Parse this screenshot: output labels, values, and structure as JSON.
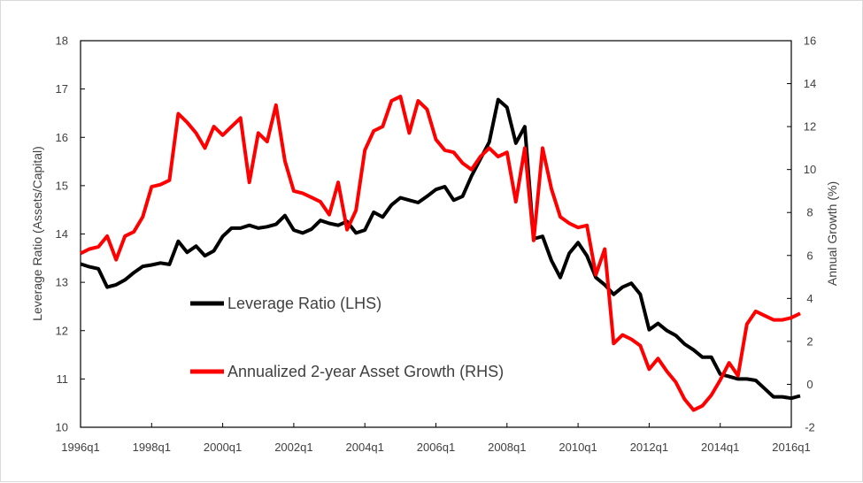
{
  "chart_data": {
    "type": "line",
    "title": "",
    "xlabel": "",
    "ylabel_left": "Leverage Ratio (Assets/Capital)",
    "ylabel_right": "Annual Growth (%)",
    "y_left_lim": [
      10,
      18
    ],
    "y_left_ticks": [
      "10",
      "11",
      "12",
      "13",
      "14",
      "15",
      "16",
      "17",
      "18"
    ],
    "y_right_lim": [
      -2,
      16
    ],
    "y_right_ticks": [
      "-2",
      "0",
      "2",
      "4",
      "6",
      "8",
      "10",
      "12",
      "14",
      "16"
    ],
    "x_tick_labels": [
      "1996q1",
      "1998q1",
      "2000q1",
      "2002q1",
      "2004q1",
      "2006q1",
      "2008q1",
      "2010q1",
      "2012q1",
      "2014q1",
      "2016q1"
    ],
    "x_range": [
      "1996q1",
      "2016q1"
    ],
    "grid": false,
    "legend_position": "center-left",
    "series": [
      {
        "name": "Leverage Ratio (LHS)",
        "axis": "left",
        "color": "#000000",
        "points": [
          [
            "1996q1",
            13.38
          ],
          [
            "1996q2",
            13.32
          ],
          [
            "1996q3",
            13.28
          ],
          [
            "1996q4",
            12.9
          ],
          [
            "1997q1",
            12.95
          ],
          [
            "1997q2",
            13.05
          ],
          [
            "1997q3",
            13.2
          ],
          [
            "1997q4",
            13.33
          ],
          [
            "1998q1",
            13.36
          ],
          [
            "1998q2",
            13.4
          ],
          [
            "1998q3",
            13.37
          ],
          [
            "1998q4",
            13.85
          ],
          [
            "1999q1",
            13.62
          ],
          [
            "1999q2",
            13.75
          ],
          [
            "1999q3",
            13.55
          ],
          [
            "1999q4",
            13.65
          ],
          [
            "2000q1",
            13.95
          ],
          [
            "2000q2",
            14.12
          ],
          [
            "2000q3",
            14.12
          ],
          [
            "2000q4",
            14.18
          ],
          [
            "2001q1",
            14.12
          ],
          [
            "2001q2",
            14.15
          ],
          [
            "2001q3",
            14.2
          ],
          [
            "2001q4",
            14.38
          ],
          [
            "2002q1",
            14.08
          ],
          [
            "2002q2",
            14.02
          ],
          [
            "2002q3",
            14.1
          ],
          [
            "2002q4",
            14.28
          ],
          [
            "2003q1",
            14.22
          ],
          [
            "2003q2",
            14.18
          ],
          [
            "2003q3",
            14.26
          ],
          [
            "2003q4",
            14.02
          ],
          [
            "2004q1",
            14.08
          ],
          [
            "2004q2",
            14.45
          ],
          [
            "2004q3",
            14.35
          ],
          [
            "2004q4",
            14.6
          ],
          [
            "2005q1",
            14.75
          ],
          [
            "2005q2",
            14.7
          ],
          [
            "2005q3",
            14.65
          ],
          [
            "2005q4",
            14.78
          ],
          [
            "2006q1",
            14.92
          ],
          [
            "2006q2",
            14.98
          ],
          [
            "2006q3",
            14.7
          ],
          [
            "2006q4",
            14.78
          ],
          [
            "2007q1",
            15.2
          ],
          [
            "2007q2",
            15.55
          ],
          [
            "2007q3",
            15.9
          ],
          [
            "2007q4",
            16.78
          ],
          [
            "2008q1",
            16.62
          ],
          [
            "2008q2",
            15.88
          ],
          [
            "2008q3",
            16.22
          ],
          [
            "2008q4",
            13.9
          ],
          [
            "2009q1",
            13.95
          ],
          [
            "2009q2",
            13.45
          ],
          [
            "2009q3",
            13.1
          ],
          [
            "2009q4",
            13.6
          ],
          [
            "2010q1",
            13.82
          ],
          [
            "2010q2",
            13.55
          ],
          [
            "2010q3",
            13.1
          ],
          [
            "2010q4",
            12.95
          ],
          [
            "2011q1",
            12.75
          ],
          [
            "2011q2",
            12.9
          ],
          [
            "2011q3",
            12.98
          ],
          [
            "2011q4",
            12.75
          ],
          [
            "2012q1",
            12.02
          ],
          [
            "2012q2",
            12.15
          ],
          [
            "2012q3",
            12.0
          ],
          [
            "2012q4",
            11.9
          ],
          [
            "2013q1",
            11.72
          ],
          [
            "2013q2",
            11.6
          ],
          [
            "2013q3",
            11.45
          ],
          [
            "2013q4",
            11.45
          ],
          [
            "2014q1",
            11.1
          ],
          [
            "2014q2",
            11.05
          ],
          [
            "2014q3",
            11.0
          ],
          [
            "2014q4",
            11.0
          ],
          [
            "2015q1",
            10.97
          ],
          [
            "2015q2",
            10.8
          ],
          [
            "2015q3",
            10.63
          ],
          [
            "2015q4",
            10.63
          ],
          [
            "2016q1",
            10.6
          ],
          [
            "2016q2",
            10.65
          ]
        ]
      },
      {
        "name": "Annualized 2-year Asset Growth (RHS)",
        "axis": "right",
        "color": "#ff0000",
        "points": [
          [
            "1996q1",
            6.1
          ],
          [
            "1996q2",
            6.3
          ],
          [
            "1996q3",
            6.4
          ],
          [
            "1996q4",
            6.9
          ],
          [
            "1997q1",
            5.8
          ],
          [
            "1997q2",
            6.9
          ],
          [
            "1997q3",
            7.1
          ],
          [
            "1997q4",
            7.8
          ],
          [
            "1998q1",
            9.2
          ],
          [
            "1998q2",
            9.3
          ],
          [
            "1998q3",
            9.5
          ],
          [
            "1998q4",
            12.6
          ],
          [
            "1999q1",
            12.2
          ],
          [
            "1999q2",
            11.7
          ],
          [
            "1999q3",
            11.0
          ],
          [
            "1999q4",
            12.0
          ],
          [
            "2000q1",
            11.6
          ],
          [
            "2000q2",
            12.0
          ],
          [
            "2000q3",
            12.4
          ],
          [
            "2000q4",
            9.4
          ],
          [
            "2001q1",
            11.7
          ],
          [
            "2001q2",
            11.3
          ],
          [
            "2001q3",
            13.0
          ],
          [
            "2001q4",
            10.4
          ],
          [
            "2002q1",
            9.0
          ],
          [
            "2002q2",
            8.9
          ],
          [
            "2002q3",
            8.7
          ],
          [
            "2002q4",
            8.5
          ],
          [
            "2003q1",
            7.9
          ],
          [
            "2003q2",
            9.4
          ],
          [
            "2003q3",
            7.2
          ],
          [
            "2003q4",
            8.1
          ],
          [
            "2004q1",
            10.9
          ],
          [
            "2004q2",
            11.8
          ],
          [
            "2004q3",
            12.0
          ],
          [
            "2004q4",
            13.2
          ],
          [
            "2005q1",
            13.4
          ],
          [
            "2005q2",
            11.7
          ],
          [
            "2005q3",
            13.2
          ],
          [
            "2005q4",
            12.8
          ],
          [
            "2006q1",
            11.4
          ],
          [
            "2006q2",
            10.9
          ],
          [
            "2006q3",
            10.8
          ],
          [
            "2006q4",
            10.3
          ],
          [
            "2007q1",
            10.0
          ],
          [
            "2007q2",
            10.6
          ],
          [
            "2007q3",
            11.0
          ],
          [
            "2007q4",
            10.6
          ],
          [
            "2008q1",
            10.8
          ],
          [
            "2008q2",
            8.5
          ],
          [
            "2008q3",
            11.0
          ],
          [
            "2008q4",
            6.7
          ],
          [
            "2009q1",
            11.0
          ],
          [
            "2009q2",
            9.1
          ],
          [
            "2009q3",
            7.8
          ],
          [
            "2009q4",
            7.5
          ],
          [
            "2010q1",
            7.3
          ],
          [
            "2010q2",
            7.4
          ],
          [
            "2010q3",
            5.1
          ],
          [
            "2010q4",
            6.3
          ],
          [
            "2011q1",
            1.9
          ],
          [
            "2011q2",
            2.3
          ],
          [
            "2011q3",
            2.1
          ],
          [
            "2011q4",
            1.8
          ],
          [
            "2012q1",
            0.7
          ],
          [
            "2012q2",
            1.2
          ],
          [
            "2012q3",
            0.6
          ],
          [
            "2012q4",
            0.1
          ],
          [
            "2013q1",
            -0.7
          ],
          [
            "2013q2",
            -1.2
          ],
          [
            "2013q3",
            -1.0
          ],
          [
            "2013q4",
            -0.5
          ],
          [
            "2014q1",
            0.2
          ],
          [
            "2014q2",
            1.0
          ],
          [
            "2014q3",
            0.4
          ],
          [
            "2014q4",
            2.8
          ],
          [
            "2015q1",
            3.4
          ],
          [
            "2015q2",
            3.2
          ],
          [
            "2015q3",
            3.0
          ],
          [
            "2015q4",
            3.0
          ],
          [
            "2016q1",
            3.1
          ],
          [
            "2016q2",
            3.3
          ]
        ]
      }
    ]
  }
}
